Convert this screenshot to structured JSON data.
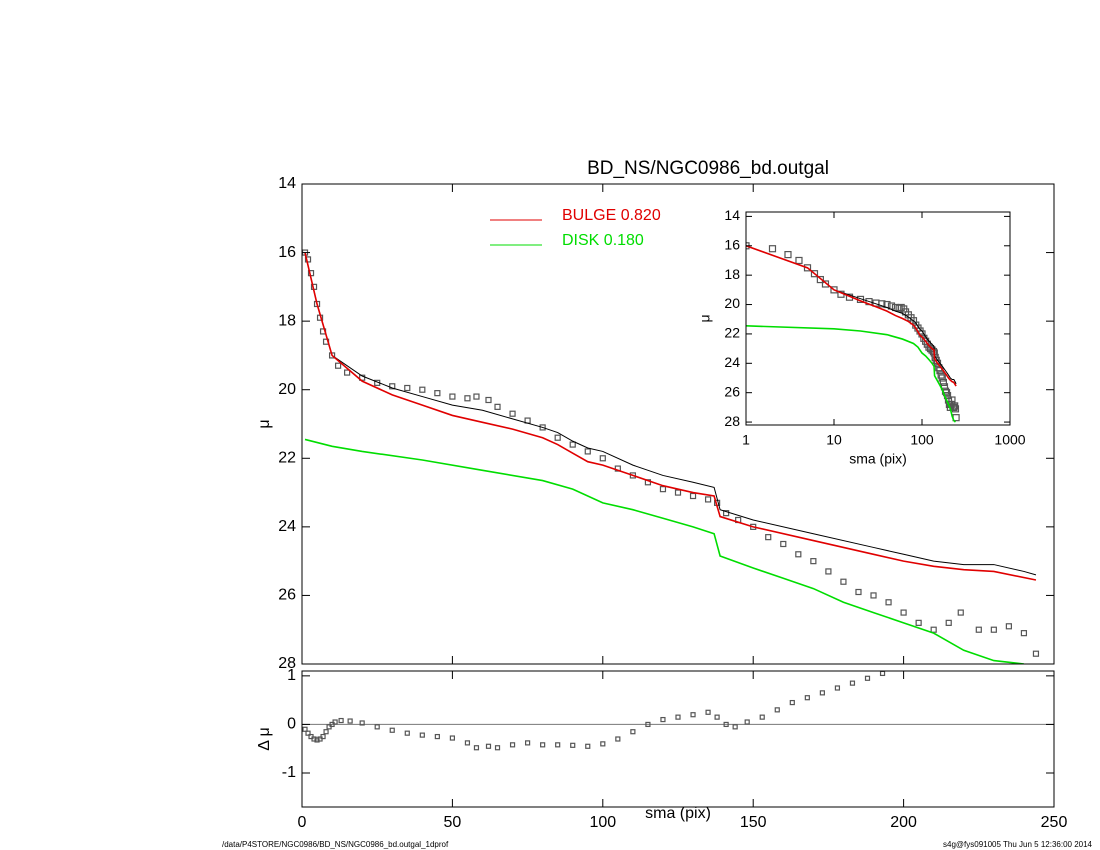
{
  "chart_data": [
    {
      "type": "line",
      "title": "BD_NS/NGC0986_bd.outgal",
      "ylabel": "μ",
      "xlim": [
        0,
        250
      ],
      "xticks": [
        0,
        50,
        100,
        150,
        200,
        250
      ],
      "xtick_labels": false,
      "ylim": [
        28,
        14
      ],
      "yticks": [
        14,
        16,
        18,
        20,
        22,
        24,
        26,
        28
      ],
      "legend": "upper center",
      "series": [
        {
          "color": "#555555",
          "style": "markers",
          "x": [
            1,
            2,
            3,
            4,
            5,
            6,
            7,
            8,
            10,
            12,
            15,
            20,
            25,
            30,
            35,
            40,
            45,
            50,
            55,
            58,
            62,
            65,
            70,
            75,
            80,
            85,
            90,
            95,
            100,
            105,
            110,
            115,
            120,
            125,
            130,
            135,
            138,
            141,
            145,
            150,
            155,
            160,
            165,
            170,
            175,
            180,
            185,
            190,
            195,
            200,
            205,
            210,
            215,
            219,
            225,
            230,
            235,
            240,
            244
          ],
          "values": [
            16.0,
            16.2,
            16.6,
            17.0,
            17.5,
            17.9,
            18.3,
            18.6,
            19.0,
            19.3,
            19.5,
            19.65,
            19.8,
            19.9,
            19.95,
            20.0,
            20.1,
            20.2,
            20.25,
            20.2,
            20.3,
            20.5,
            20.7,
            20.9,
            21.1,
            21.4,
            21.6,
            21.8,
            22.0,
            22.3,
            22.5,
            22.7,
            22.9,
            23.0,
            23.1,
            23.2,
            23.3,
            23.6,
            23.8,
            24.0,
            24.3,
            24.5,
            24.8,
            25.0,
            25.3,
            25.6,
            25.9,
            26.0,
            26.2,
            26.5,
            26.8,
            27.0,
            26.8,
            26.5,
            27.0,
            27.0,
            26.9,
            27.1,
            27.7
          ]
        },
        {
          "color": "#000000",
          "style": "line",
          "x": [
            1,
            5,
            10,
            20,
            30,
            40,
            50,
            60,
            70,
            80,
            85,
            90,
            95,
            100,
            110,
            120,
            130,
            137,
            139,
            150,
            170,
            190,
            200,
            210,
            220,
            230,
            240,
            244
          ],
          "values": [
            16.0,
            17.5,
            19.0,
            19.6,
            19.95,
            20.2,
            20.45,
            20.6,
            20.85,
            21.1,
            21.25,
            21.5,
            21.7,
            21.8,
            22.2,
            22.5,
            22.7,
            22.85,
            23.5,
            23.8,
            24.2,
            24.6,
            24.8,
            25.0,
            25.1,
            25.1,
            25.3,
            25.4
          ]
        },
        {
          "name": "BULGE  0.820",
          "color": "#e00000",
          "style": "line",
          "x": [
            1,
            5,
            10,
            20,
            30,
            40,
            50,
            60,
            70,
            80,
            85,
            90,
            95,
            100,
            110,
            120,
            130,
            137,
            139,
            150,
            170,
            190,
            200,
            210,
            220,
            230,
            244
          ],
          "values": [
            16.0,
            17.5,
            19.0,
            19.75,
            20.15,
            20.45,
            20.75,
            20.95,
            21.15,
            21.4,
            21.6,
            21.85,
            22.1,
            22.2,
            22.5,
            22.8,
            23.0,
            23.1,
            23.7,
            24.0,
            24.4,
            24.8,
            25.0,
            25.15,
            25.25,
            25.3,
            25.55
          ]
        },
        {
          "name": "DISK  0.180",
          "color": "#00dd00",
          "style": "line",
          "x": [
            1,
            10,
            20,
            40,
            60,
            80,
            90,
            100,
            110,
            120,
            130,
            137,
            139,
            150,
            160,
            170,
            180,
            190,
            200,
            210,
            220,
            230,
            240
          ],
          "values": [
            21.45,
            21.65,
            21.8,
            22.05,
            22.35,
            22.65,
            22.9,
            23.3,
            23.5,
            23.75,
            24.0,
            24.2,
            24.85,
            25.2,
            25.5,
            25.8,
            26.2,
            26.5,
            26.8,
            27.1,
            27.6,
            27.9,
            28.0
          ]
        }
      ]
    },
    {
      "type": "scatter",
      "xlabel": "sma (pix)",
      "ylabel": "Δ μ",
      "xlim": [
        0,
        250
      ],
      "xticks": [
        0,
        50,
        100,
        150,
        200,
        250
      ],
      "ylim": [
        -1.7,
        1.1
      ],
      "yticks": [
        -1,
        0,
        1
      ],
      "hline": 0,
      "color": "#555555",
      "x": [
        1,
        2,
        3,
        4,
        5,
        6,
        7,
        8,
        9,
        10,
        11,
        13,
        16,
        20,
        25,
        30,
        35,
        40,
        45,
        50,
        55,
        58,
        62,
        65,
        70,
        75,
        80,
        85,
        90,
        95,
        100,
        105,
        110,
        115,
        120,
        125,
        130,
        135,
        138,
        141,
        144,
        148,
        153,
        158,
        163,
        168,
        173,
        178,
        183,
        188,
        193
      ],
      "values": [
        -0.1,
        -0.18,
        -0.25,
        -0.3,
        -0.32,
        -0.3,
        -0.25,
        -0.15,
        -0.05,
        0.0,
        0.05,
        0.08,
        0.07,
        0.03,
        -0.05,
        -0.12,
        -0.18,
        -0.22,
        -0.25,
        -0.28,
        -0.38,
        -0.48,
        -0.45,
        -0.48,
        -0.42,
        -0.38,
        -0.42,
        -0.42,
        -0.43,
        -0.45,
        -0.4,
        -0.3,
        -0.15,
        0.0,
        0.1,
        0.15,
        0.2,
        0.25,
        0.15,
        0.0,
        -0.05,
        0.05,
        0.15,
        0.3,
        0.45,
        0.55,
        0.65,
        0.75,
        0.85,
        0.95,
        1.05
      ]
    },
    {
      "type": "line",
      "xscale": "log",
      "xlabel": "sma (pix)",
      "ylabel": "μ",
      "xlim": [
        1,
        1000
      ],
      "xticks": [
        1,
        10,
        100,
        1000
      ],
      "ylim": [
        28.2,
        13.7
      ],
      "yticks": [
        14,
        16,
        18,
        20,
        22,
        24,
        26,
        28
      ]
    }
  ],
  "footer": {
    "left": "/data/P4STORE/NGC0986/BD_NS/NGC0986_bd.outgal_1dprof",
    "right": "s4g@fys091005  Thu Jun  5 12:36:00 2014"
  }
}
